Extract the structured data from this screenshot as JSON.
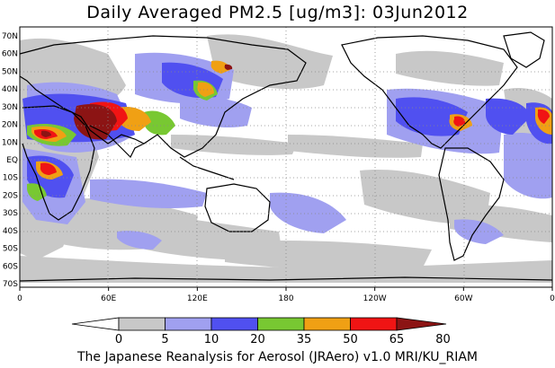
{
  "title": "Daily Averaged PM2.5 [ug/m3]: 03Jun2012",
  "footer": "The Japanese Reanalysis for Aerosol (JRAero) v1.0 MRI/KU_RIAM",
  "map": {
    "lat_labels": [
      "70N",
      "60N",
      "50N",
      "40N",
      "30N",
      "20N",
      "10N",
      "EQ",
      "10S",
      "20S",
      "30S",
      "40S",
      "50S",
      "60S",
      "70S"
    ],
    "lon_labels": [
      "0",
      "60E",
      "120E",
      "180",
      "120W",
      "60W",
      "0"
    ]
  },
  "colorbar": {
    "ticks": [
      "0",
      "5",
      "10",
      "20",
      "35",
      "50",
      "65",
      "80"
    ],
    "colors": [
      "#ffffff",
      "#c8c8c8",
      "#a0a0f0",
      "#5050f0",
      "#78c832",
      "#f0a014",
      "#f01414",
      "#8c1414"
    ]
  },
  "colors": {
    "land_outline": "#000000",
    "gridline": "#888888"
  }
}
